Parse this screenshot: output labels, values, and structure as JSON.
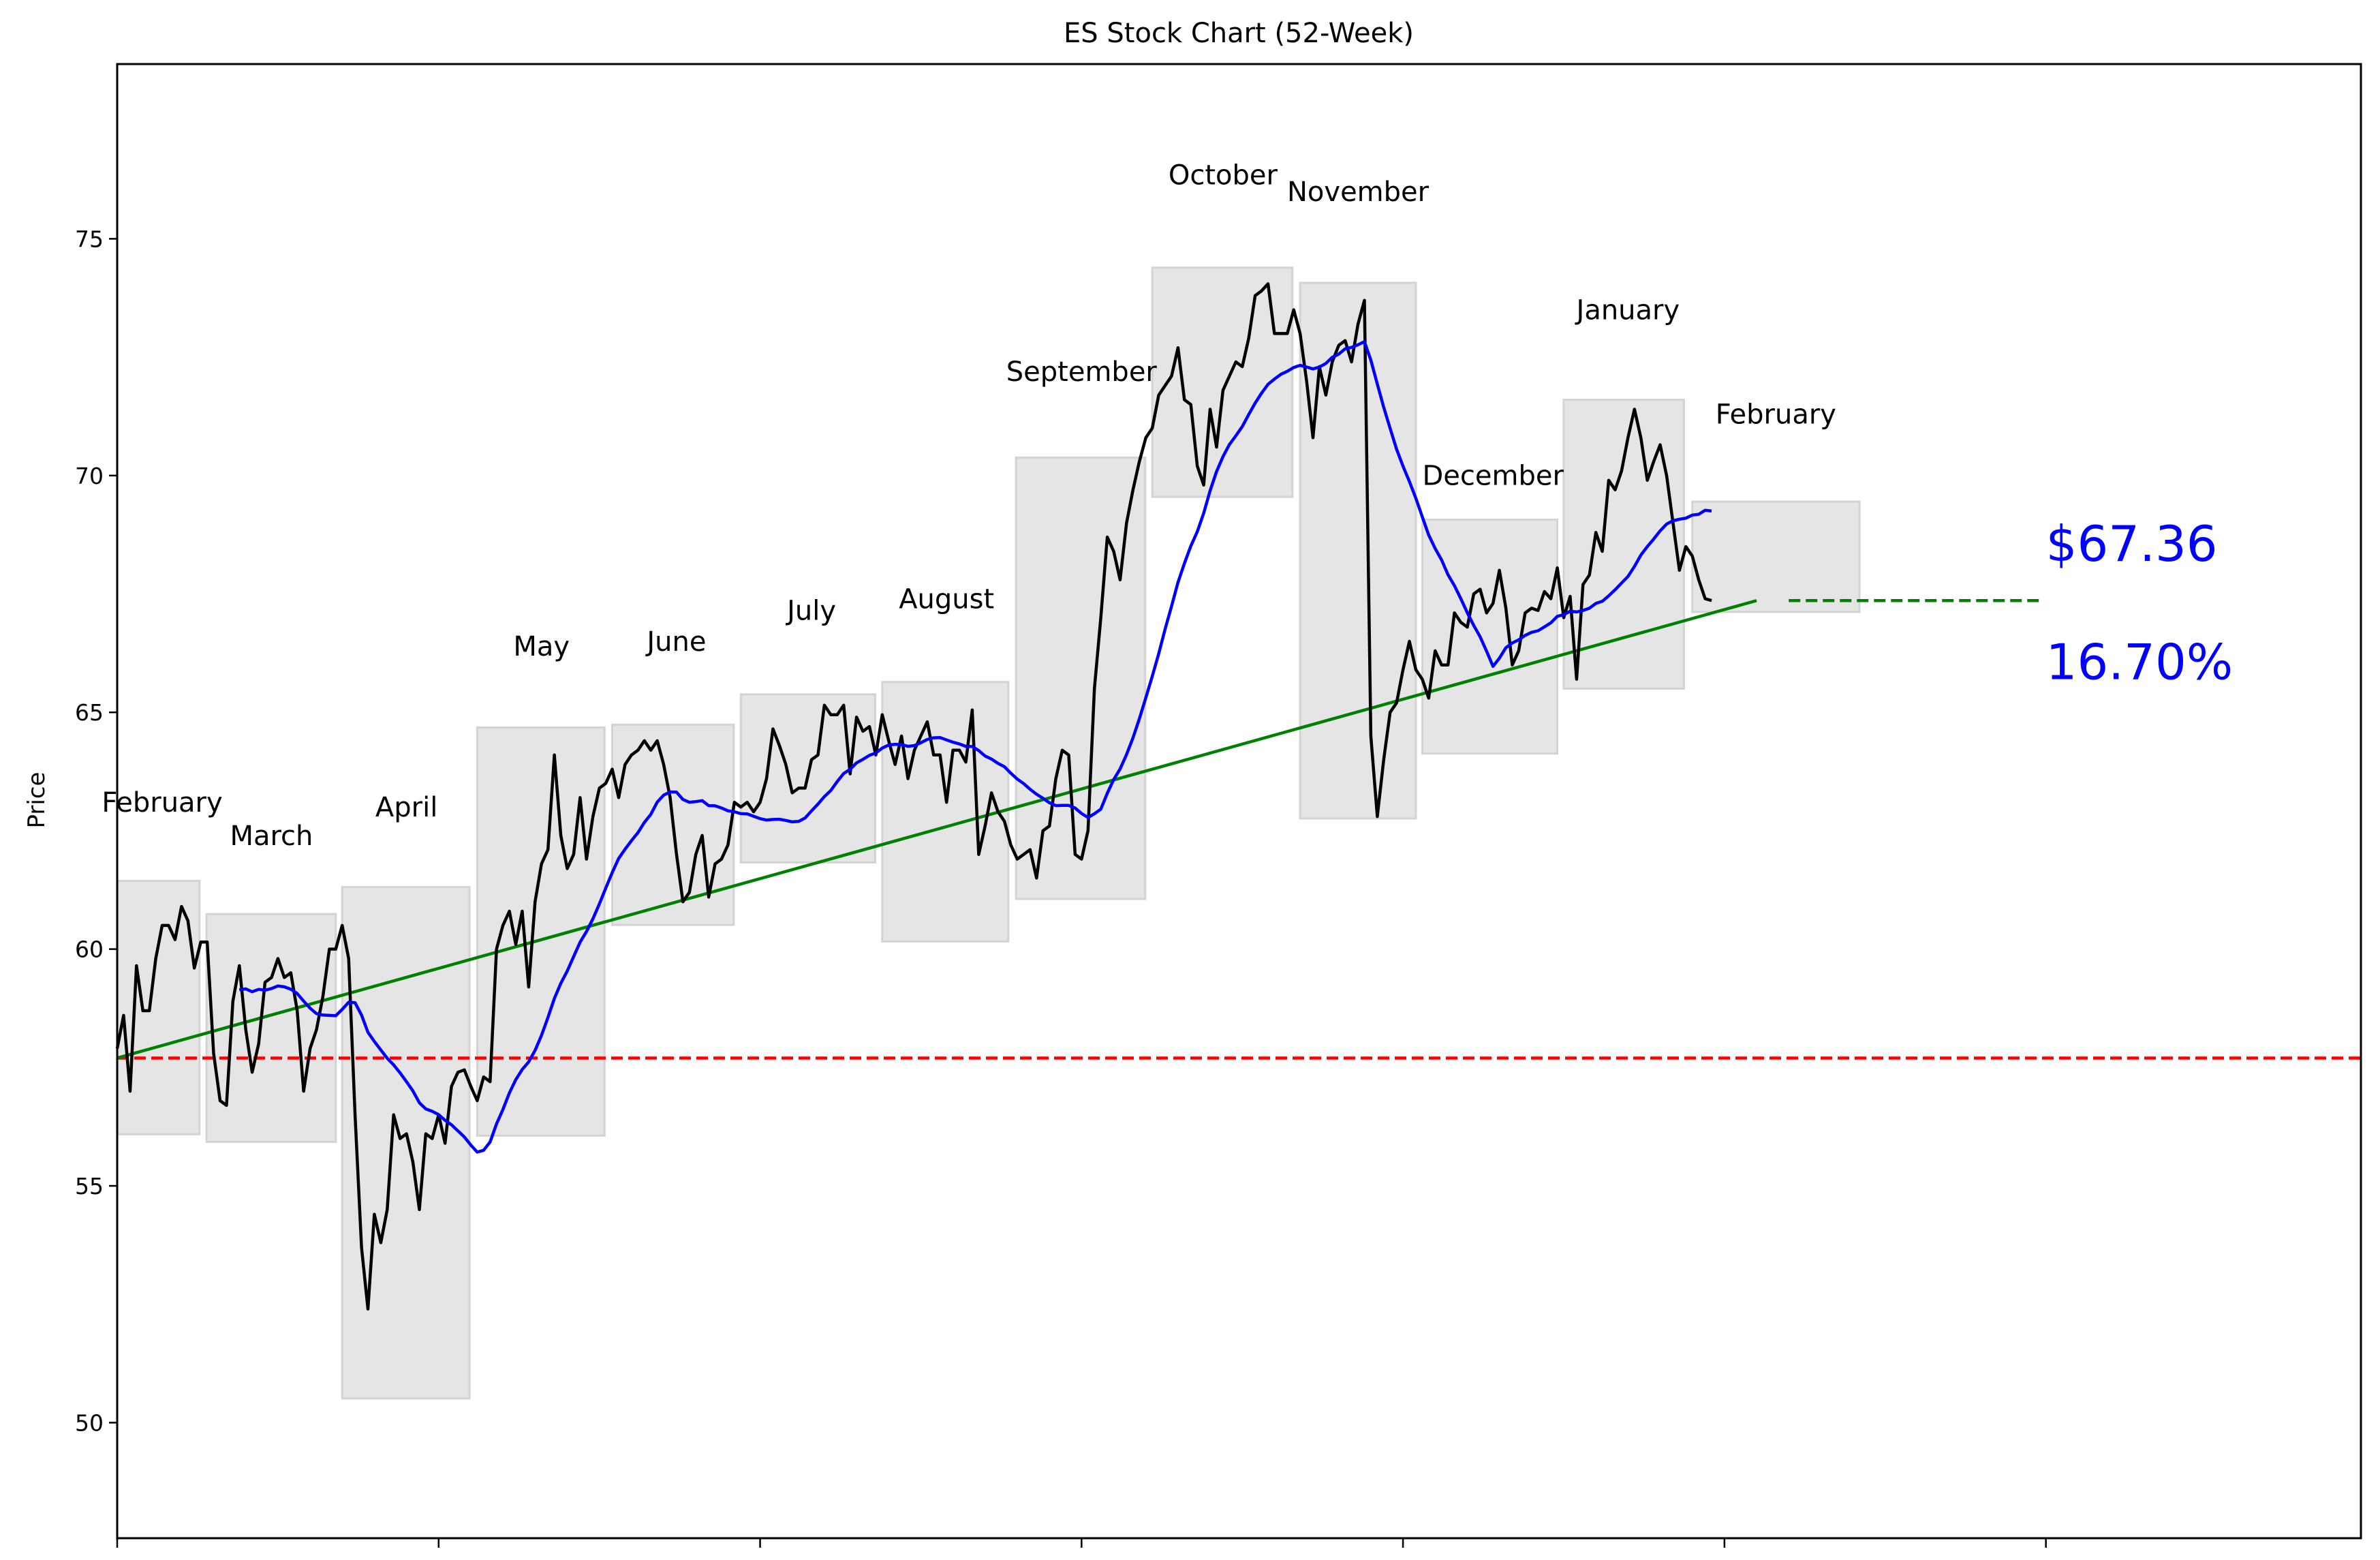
{
  "chart_data": {
    "type": "line",
    "title": "ES Stock Chart (52-Week)",
    "xlabel": "",
    "ylabel": "Price",
    "xlim": [
      0,
      349
    ],
    "ylim": [
      47.56,
      78.69
    ],
    "xticks": [
      0,
      50,
      100,
      150,
      200,
      250,
      300
    ],
    "yticks": [
      50,
      55,
      60,
      65,
      70,
      75
    ],
    "grid": false,
    "colors": {
      "price": "#000000",
      "moving_average": "#0000ff",
      "trend": "#008000",
      "baseline": "#ff0000",
      "month_box": "#d3d3d3",
      "annotation": "#0000ff"
    },
    "price": [
      57.9,
      58.6,
      57.0,
      59.65,
      58.7,
      58.7,
      59.8,
      60.5,
      60.5,
      60.2,
      60.9,
      60.6,
      59.6,
      60.15,
      60.15,
      57.8,
      56.8,
      56.7,
      58.9,
      59.65,
      58.3,
      57.4,
      58.0,
      59.3,
      59.4,
      59.8,
      59.4,
      59.5,
      58.7,
      57.0,
      57.9,
      58.3,
      59.0,
      60.0,
      60.0,
      60.5,
      59.8,
      56.5,
      53.7,
      52.4,
      54.4,
      53.8,
      54.5,
      56.5,
      56.0,
      56.1,
      55.5,
      54.5,
      56.1,
      56.0,
      56.5,
      55.9,
      57.1,
      57.4,
      57.45,
      57.1,
      56.8,
      57.3,
      57.2,
      60.0,
      60.5,
      60.8,
      60.1,
      60.8,
      59.2,
      61.0,
      61.8,
      62.1,
      64.1,
      62.4,
      61.7,
      62.0,
      63.2,
      61.9,
      62.8,
      63.4,
      63.5,
      63.8,
      63.2,
      63.9,
      64.1,
      64.2,
      64.4,
      64.2,
      64.4,
      63.9,
      63.2,
      62.0,
      61.0,
      61.2,
      62.0,
      62.4,
      61.1,
      61.8,
      61.9,
      62.2,
      63.1,
      63.0,
      63.1,
      62.9,
      63.1,
      63.6,
      64.65,
      64.3,
      63.9,
      63.3,
      63.4,
      63.4,
      64.0,
      64.1,
      65.15,
      64.95,
      64.95,
      65.15,
      63.7,
      64.9,
      64.6,
      64.7,
      64.1,
      64.95,
      64.4,
      63.9,
      64.5,
      63.6,
      64.2,
      64.5,
      64.8,
      64.1,
      64.1,
      63.1,
      64.2,
      64.2,
      63.95,
      65.05,
      62.0,
      62.6,
      63.3,
      62.9,
      62.7,
      62.2,
      61.9,
      62.0,
      62.1,
      61.5,
      62.5,
      62.6,
      63.6,
      64.2,
      64.1,
      62.0,
      61.9,
      62.5,
      65.5,
      67.0,
      68.7,
      68.4,
      67.8,
      69.0,
      69.7,
      70.3,
      70.8,
      71.0,
      71.7,
      71.9,
      72.1,
      72.7,
      71.6,
      71.5,
      70.2,
      69.8,
      71.4,
      70.6,
      71.8,
      72.1,
      72.4,
      72.3,
      72.9,
      73.8,
      73.9,
      74.05,
      73.0,
      73.0,
      73.0,
      73.5,
      73.0,
      72.0,
      70.8,
      72.3,
      71.7,
      72.4,
      72.75,
      72.85,
      72.4,
      73.2,
      73.7,
      64.5,
      62.8,
      64.0,
      65.0,
      65.2,
      65.9,
      66.5,
      65.9,
      65.7,
      65.3,
      66.3,
      66.0,
      66.0,
      67.1,
      66.9,
      66.8,
      67.5,
      67.6,
      67.1,
      67.3,
      68.0,
      67.2,
      66.0,
      66.3,
      67.1,
      67.2,
      67.15,
      67.55,
      67.4,
      68.05,
      67.0,
      67.45,
      65.7,
      67.7,
      67.9,
      68.8,
      68.4,
      69.9,
      69.7,
      70.1,
      70.8,
      71.4,
      70.8,
      69.9,
      70.3,
      70.65,
      70.0,
      69.0,
      68.0,
      68.5,
      68.3,
      67.8,
      67.4,
      67.36
    ],
    "moving_average_window": 20,
    "trend_line": {
      "x": [
        0,
        255
      ],
      "y": [
        57.7,
        67.36
      ]
    },
    "baseline": 57.7,
    "projection_line": {
      "x": [
        260,
        299
      ],
      "y": 67.36
    },
    "months": [
      {
        "label": "February",
        "x": [
          0,
          12.8
        ],
        "low": 56.09,
        "high": 61.44,
        "label_x": 7,
        "label_y": 62.9
      },
      {
        "label": "March",
        "x": [
          13.9,
          34
        ],
        "low": 55.93,
        "high": 60.74,
        "label_x": 24,
        "label_y": 62.2
      },
      {
        "label": "April",
        "x": [
          35,
          54.8
        ],
        "low": 50.51,
        "high": 61.31,
        "label_x": 45,
        "label_y": 62.8
      },
      {
        "label": "May",
        "x": [
          56,
          75.8
        ],
        "low": 56.06,
        "high": 64.68,
        "label_x": 66,
        "label_y": 66.2
      },
      {
        "label": "June",
        "x": [
          77,
          95.9
        ],
        "low": 60.51,
        "high": 64.74,
        "label_x": 87,
        "label_y": 66.3
      },
      {
        "label": "July",
        "x": [
          97,
          117.9
        ],
        "low": 61.83,
        "high": 65.38,
        "label_x": 108,
        "label_y": 66.95
      },
      {
        "label": "August",
        "x": [
          119,
          138.6
        ],
        "low": 60.16,
        "high": 65.64,
        "label_x": 129,
        "label_y": 67.2
      },
      {
        "label": "September",
        "x": [
          139.8,
          159.9
        ],
        "low": 61.06,
        "high": 70.38,
        "label_x": 150,
        "label_y": 72.0
      },
      {
        "label": "October",
        "x": [
          161,
          182.8
        ],
        "low": 69.55,
        "high": 74.39,
        "label_x": 172,
        "label_y": 76.15
      },
      {
        "label": "November",
        "x": [
          184,
          202
        ],
        "low": 62.76,
        "high": 74.07,
        "label_x": 193,
        "label_y": 75.8
      },
      {
        "label": "December",
        "x": [
          203,
          224
        ],
        "low": 64.13,
        "high": 69.07,
        "label_x": 214,
        "label_y": 69.8
      },
      {
        "label": "January",
        "x": [
          225,
          243.7
        ],
        "low": 65.5,
        "high": 71.6,
        "label_x": 235,
        "label_y": 73.3
      },
      {
        "label": "February",
        "x": [
          245,
          271
        ],
        "low": 67.12,
        "high": 69.45,
        "label_x": 258,
        "label_y": 71.1
      }
    ],
    "annotations": {
      "price_label": "$67.36",
      "change_label": "16.70%",
      "label_x": 300
    }
  }
}
